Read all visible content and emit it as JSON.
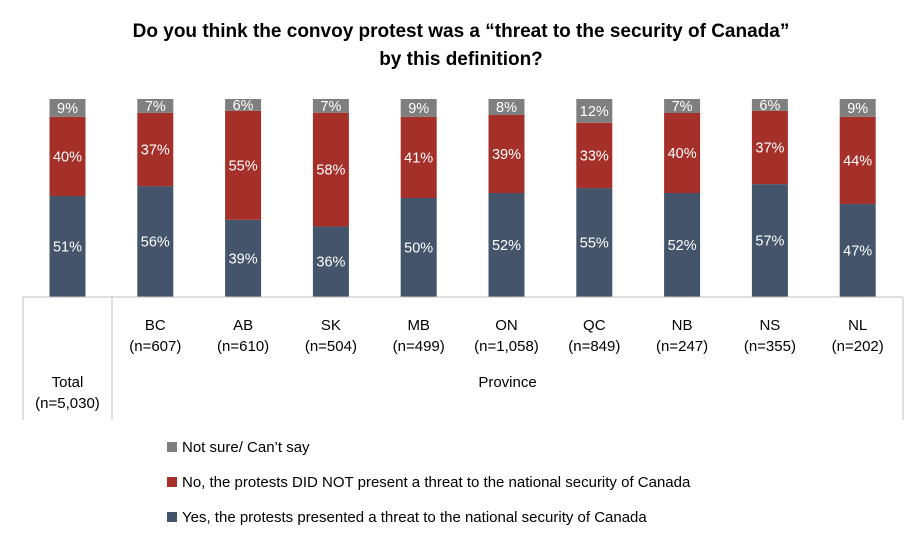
{
  "chart_data": {
    "type": "bar",
    "stacked": true,
    "title_line1": "Do you think the convoy protest was a “threat to the security of Canada”",
    "title_line2": "by this definition?",
    "categories": [
      {
        "name": "Total",
        "n": "(n=5,030)"
      },
      {
        "name": "BC",
        "n": "(n=607)"
      },
      {
        "name": "AB",
        "n": "(n=610)"
      },
      {
        "name": "SK",
        "n": "(n=504)"
      },
      {
        "name": "MB",
        "n": "(n=499)"
      },
      {
        "name": "ON",
        "n": "(n=1,058)"
      },
      {
        "name": "QC",
        "n": "(n=849)"
      },
      {
        "name": "NB",
        "n": "(n=247)"
      },
      {
        "name": "NS",
        "n": "(n=355)"
      },
      {
        "name": "NL",
        "n": "(n=202)"
      }
    ],
    "group_label": "Province",
    "series": [
      {
        "name": "Yes, the protests presented a threat to the national security of Canada",
        "color": "#44546a",
        "values": [
          51,
          56,
          39,
          36,
          50,
          52,
          55,
          52,
          57,
          47
        ]
      },
      {
        "name": "No, the protests DID NOT present a threat to the national security of Canada",
        "color": "#a5302a",
        "values": [
          40,
          37,
          55,
          58,
          41,
          39,
          33,
          40,
          37,
          44
        ]
      },
      {
        "name": "Not sure/ Can’t say",
        "color": "#7f7f7f",
        "values": [
          9,
          7,
          6,
          7,
          9,
          8,
          12,
          7,
          6,
          9
        ]
      }
    ],
    "legend_order": [
      2,
      1,
      0
    ],
    "legend_position": "bottom",
    "value_suffix": "%",
    "ylim": [
      0,
      100
    ],
    "grid": false
  }
}
